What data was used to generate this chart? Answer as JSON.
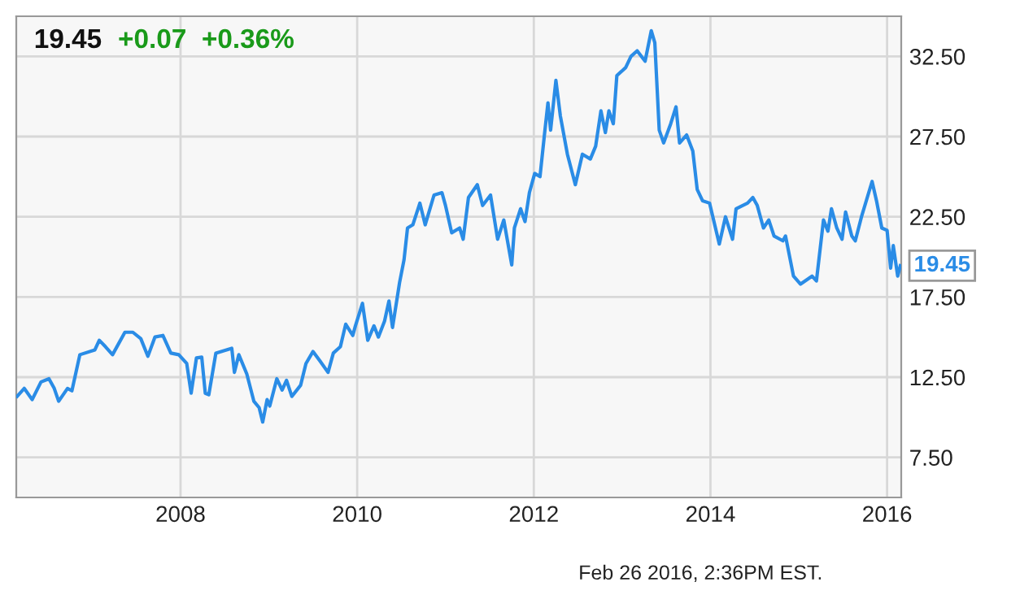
{
  "chart_data": {
    "type": "line",
    "title": "19.45",
    "subtitle": "+0.07  +0.36%",
    "x": [
      2006.15,
      2006.23,
      2006.32,
      2006.42,
      2006.51,
      2006.57,
      2006.62,
      2006.72,
      2006.77,
      2006.86,
      2007.03,
      2007.08,
      2007.15,
      2007.23,
      2007.37,
      2007.46,
      2007.55,
      2007.63,
      2007.71,
      2007.8,
      2007.89,
      2007.98,
      2008.07,
      2008.12,
      2008.18,
      2008.24,
      2008.28,
      2008.32,
      2008.4,
      2008.58,
      2008.61,
      2008.66,
      2008.75,
      2008.83,
      2008.89,
      2008.93,
      2008.98,
      2009.01,
      2009.09,
      2009.15,
      2009.2,
      2009.26,
      2009.36,
      2009.42,
      2009.5,
      2009.58,
      2009.67,
      2009.73,
      2009.81,
      2009.87,
      2009.95,
      2009.98,
      2010.06,
      2010.12,
      2010.19,
      2010.24,
      2010.31,
      2010.36,
      2010.4,
      2010.48,
      2010.53,
      2010.57,
      2010.63,
      2010.71,
      2010.77,
      2010.87,
      2010.96,
      2011.0,
      2011.07,
      2011.16,
      2011.2,
      2011.26,
      2011.36,
      2011.42,
      2011.51,
      2011.59,
      2011.66,
      2011.75,
      2011.78,
      2011.85,
      2011.9,
      2011.95,
      2012.01,
      2012.07,
      2012.12,
      2012.16,
      2012.19,
      2012.25,
      2012.3,
      2012.38,
      2012.47,
      2012.55,
      2012.64,
      2012.7,
      2012.76,
      2012.81,
      2012.85,
      2012.9,
      2012.94,
      2013.04,
      2013.1,
      2013.17,
      2013.26,
      2013.33,
      2013.37,
      2013.42,
      2013.47,
      2013.55,
      2013.61,
      2013.65,
      2013.73,
      2013.8,
      2013.85,
      2013.91,
      2013.99,
      2014.1,
      2014.17,
      2014.25,
      2014.29,
      2014.42,
      2014.48,
      2014.53,
      2014.6,
      2014.66,
      2014.72,
      2014.82,
      2014.85,
      2014.94,
      2015.02,
      2015.15,
      2015.2,
      2015.28,
      2015.33,
      2015.37,
      2015.43,
      2015.49,
      2015.53,
      2015.6,
      2015.64,
      2015.71,
      2015.83,
      2015.88,
      2015.94,
      2016.0,
      2016.04,
      2016.07,
      2016.12,
      2016.15
    ],
    "series": [
      {
        "color": "#2a8ce6",
        "values": [
          11.3,
          11.8,
          11.1,
          12.2,
          12.4,
          11.8,
          11.0,
          11.8,
          11.65,
          13.9,
          14.2,
          14.8,
          14.4,
          13.9,
          15.3,
          15.3,
          14.9,
          13.8,
          15.0,
          15.1,
          14.0,
          13.9,
          13.35,
          11.5,
          13.7,
          13.75,
          11.5,
          11.4,
          14.0,
          14.3,
          12.8,
          13.9,
          12.7,
          11.0,
          10.6,
          9.7,
          11.1,
          10.7,
          12.4,
          11.7,
          12.3,
          11.3,
          12.0,
          13.35,
          14.1,
          13.5,
          12.8,
          14.0,
          14.4,
          15.8,
          15.1,
          15.7,
          17.1,
          14.8,
          15.7,
          15.0,
          16.0,
          17.25,
          15.6,
          18.4,
          19.8,
          21.8,
          22.0,
          23.35,
          22.0,
          23.85,
          24.0,
          23.2,
          21.5,
          21.8,
          21.1,
          23.7,
          24.5,
          23.2,
          23.85,
          21.1,
          22.3,
          19.5,
          21.8,
          23.0,
          22.2,
          24.0,
          25.2,
          25.0,
          27.6,
          29.6,
          27.9,
          31.0,
          28.8,
          26.4,
          24.5,
          26.4,
          26.1,
          26.9,
          29.1,
          27.75,
          29.1,
          28.3,
          31.3,
          31.8,
          32.5,
          32.85,
          32.2,
          34.1,
          33.35,
          27.9,
          27.1,
          28.3,
          29.35,
          27.1,
          27.6,
          26.6,
          24.2,
          23.5,
          23.35,
          20.8,
          22.5,
          21.1,
          23.0,
          23.35,
          23.7,
          23.2,
          21.8,
          22.3,
          21.3,
          21.0,
          21.3,
          18.8,
          18.3,
          18.8,
          18.5,
          22.3,
          21.6,
          23.0,
          21.8,
          21.1,
          22.8,
          21.3,
          21.0,
          22.5,
          24.7,
          23.5,
          21.8,
          21.65,
          19.3,
          20.7,
          18.8,
          19.45
        ]
      }
    ],
    "xlim": [
      2006.14,
      2016.16
    ],
    "ylim": [
      5,
      35
    ],
    "xticks": [
      2008,
      2010,
      2012,
      2014,
      2016
    ],
    "yticks": [
      {
        "value": 7.5,
        "label": "7.50"
      },
      {
        "value": 12.5,
        "label": "12.50"
      },
      {
        "value": 17.5,
        "label": "17.50"
      },
      {
        "value": 22.5,
        "label": "22.50"
      },
      {
        "value": 27.5,
        "label": "27.50"
      },
      {
        "value": 32.5,
        "label": "32.50"
      }
    ],
    "grid": true,
    "marker": "none",
    "line_style": "solid",
    "annotations": [
      {
        "text": "19.45",
        "x": 2016.15,
        "y": 19.45
      },
      "Feb 26 2016, 2:36PM EST."
    ]
  }
}
